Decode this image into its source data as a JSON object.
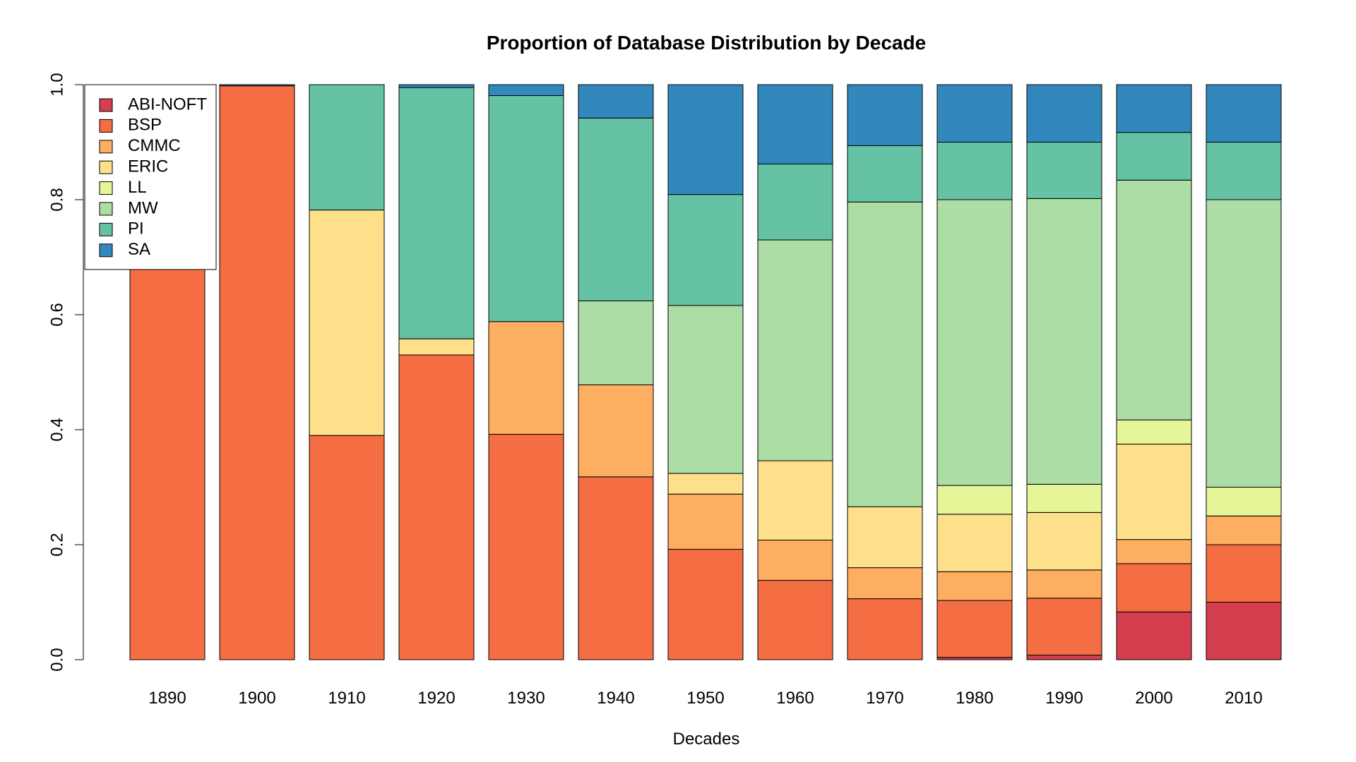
{
  "chart_data": {
    "type": "bar",
    "stacked": true,
    "title": "Proportion of Database Distribution by Decade",
    "xlabel": "Decades",
    "ylabel": "",
    "ylim": [
      0,
      1
    ],
    "yticks": [
      "0.0",
      "0.2",
      "0.4",
      "0.6",
      "0.8",
      "1.0"
    ],
    "grid": false,
    "legend_position": "top-left",
    "categories": [
      "1890",
      "1900",
      "1910",
      "1920",
      "1930",
      "1940",
      "1950",
      "1960",
      "1970",
      "1980",
      "1990",
      "2000",
      "2010"
    ],
    "series": [
      {
        "name": "ABI-NOFT",
        "color": "#d53e4f",
        "values": [
          0,
          0,
          0,
          0,
          0,
          0,
          0,
          0,
          0,
          0.004,
          0.008,
          0.083,
          0.1
        ]
      },
      {
        "name": "BSP",
        "color": "#f46d43",
        "values": [
          1.0,
          0.998,
          0.39,
          0.53,
          0.392,
          0.318,
          0.192,
          0.138,
          0.106,
          0.099,
          0.099,
          0.084,
          0.1
        ]
      },
      {
        "name": "CMMC",
        "color": "#fdae61",
        "values": [
          0,
          0,
          0,
          0,
          0.196,
          0.16,
          0.096,
          0.07,
          0.054,
          0.05,
          0.049,
          0.042,
          0.05
        ]
      },
      {
        "name": "ERIC",
        "color": "#fee08b",
        "values": [
          0,
          0,
          0.392,
          0.028,
          0,
          0,
          0.036,
          0.138,
          0.106,
          0.1,
          0.1,
          0.166,
          0
        ]
      },
      {
        "name": "LL",
        "color": "#e6f598",
        "values": [
          0,
          0,
          0,
          0,
          0,
          0,
          0,
          0,
          0,
          0.05,
          0.049,
          0.042,
          0.05
        ]
      },
      {
        "name": "MW",
        "color": "#abdda4",
        "values": [
          0,
          0,
          0,
          0,
          0,
          0.146,
          0.292,
          0.384,
          0.53,
          0.497,
          0.497,
          0.417,
          0.5
        ]
      },
      {
        "name": "PI",
        "color": "#66c2a5",
        "values": [
          0,
          0,
          0.218,
          0.437,
          0.393,
          0.318,
          0.193,
          0.132,
          0.098,
          0.1,
          0.098,
          0.083,
          0.1
        ]
      },
      {
        "name": "SA",
        "color": "#3288bd",
        "values": [
          0,
          0.002,
          0,
          0.005,
          0.019,
          0.058,
          0.191,
          0.138,
          0.106,
          0.1,
          0.1,
          0.083,
          0.1
        ]
      }
    ]
  }
}
